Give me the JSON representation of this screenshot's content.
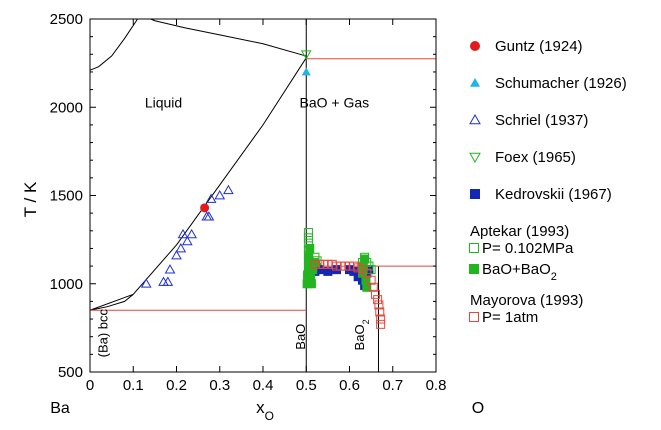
{
  "chart_data": {
    "type": "scatter",
    "xlabel": "x",
    "xlabel_sub": "O",
    "ylabel": "T / K",
    "xlim": [
      0,
      0.8
    ],
    "ylim": [
      500,
      2500
    ],
    "x_ticks": [
      "0",
      "0.1",
      "0.2",
      "0.3",
      "0.4",
      "0.5",
      "0.6",
      "0.7",
      "0.8"
    ],
    "y_ticks": [
      "500",
      "1000",
      "1500",
      "2000",
      "2500"
    ],
    "grid": false,
    "legend_position": "right",
    "corner_labels": {
      "left": "Ba",
      "right": "O"
    },
    "annotations": [
      {
        "text": "Liquid",
        "x": 0.17,
        "y": 2000,
        "rotate": false
      },
      {
        "text": "BaO + Gas",
        "x": 0.565,
        "y": 2000,
        "rotate": false
      },
      {
        "text": "(Ba) bcc",
        "x": 0.04,
        "y": 720,
        "rotate": true
      },
      {
        "text": "BaO",
        "x": 0.497,
        "y": 700,
        "rotate": true
      },
      {
        "text": "BaO",
        "sub": "2",
        "x": 0.634,
        "y": 710,
        "rotate": true
      }
    ],
    "phase_lines": [
      {
        "name": "liquidus-left",
        "color": "#000000",
        "points": [
          [
            0,
            850
          ],
          [
            0.1,
            940
          ],
          [
            0.2,
            1220
          ],
          [
            0.3,
            1560
          ],
          [
            0.4,
            1900
          ],
          [
            0.5,
            2280
          ]
        ]
      },
      {
        "name": "bcc-liquidus",
        "color": "#000000",
        "points": [
          [
            0,
            850
          ],
          [
            0.04,
            870
          ],
          [
            0.08,
            900
          ],
          [
            0.1,
            940
          ]
        ]
      },
      {
        "name": "gas-boundary-left",
        "color": "#000000",
        "points": [
          [
            0,
            2210
          ],
          [
            0.02,
            2230
          ],
          [
            0.05,
            2290
          ],
          [
            0.08,
            2390
          ],
          [
            0.11,
            2500
          ]
        ]
      },
      {
        "name": "gas-boundary-top",
        "color": "#000000",
        "points": [
          [
            0.5,
            2290
          ],
          [
            0.4,
            2360
          ],
          [
            0.3,
            2410
          ],
          [
            0.22,
            2450
          ],
          [
            0.15,
            2490
          ],
          [
            0.14,
            2500
          ]
        ]
      },
      {
        "name": "BaO-line",
        "color": "#000000",
        "points": [
          [
            0.5,
            500
          ],
          [
            0.5,
            2500
          ]
        ]
      },
      {
        "name": "BaO2-line",
        "color": "#000000",
        "points": [
          [
            0.667,
            500
          ],
          [
            0.667,
            1100
          ]
        ]
      },
      {
        "name": "eutectic-Ba-BaO",
        "color": "#e8463b",
        "points": [
          [
            0,
            850
          ],
          [
            0.5,
            850
          ]
        ]
      },
      {
        "name": "BaO-gas-isotherm",
        "color": "#e8463b",
        "points": [
          [
            0.5,
            2275
          ],
          [
            0.8,
            2275
          ]
        ]
      },
      {
        "name": "BaO2-decomposition",
        "color": "#e8463b",
        "points": [
          [
            0.5,
            1100
          ],
          [
            0.8,
            1100
          ]
        ]
      }
    ],
    "series": [
      {
        "name": "Guntz (1924)",
        "marker": "circle-filled",
        "color": "#e41a1c",
        "points": [
          [
            0.265,
            1430
          ]
        ]
      },
      {
        "name": "Schumacher (1926)",
        "marker": "triangle-up-filled",
        "color": "#1bb5e8",
        "points": [
          [
            0.5,
            2200
          ]
        ]
      },
      {
        "name": "Schriel (1937)",
        "marker": "triangle-up-open",
        "color": "#1f2fd6",
        "points": [
          [
            0.13,
            1000
          ],
          [
            0.17,
            1010
          ],
          [
            0.18,
            1010
          ],
          [
            0.185,
            1080
          ],
          [
            0.2,
            1160
          ],
          [
            0.21,
            1200
          ],
          [
            0.215,
            1280
          ],
          [
            0.225,
            1240
          ],
          [
            0.235,
            1280
          ],
          [
            0.27,
            1380
          ],
          [
            0.275,
            1380
          ],
          [
            0.28,
            1480
          ],
          [
            0.3,
            1500
          ],
          [
            0.32,
            1530
          ]
        ]
      },
      {
        "name": "Foex (1965)",
        "marker": "triangle-down-open",
        "color": "#22b520",
        "points": [
          [
            0.5,
            2300
          ]
        ]
      },
      {
        "name": "Kedrovskii (1967)",
        "marker": "square-filled",
        "color": "#1228b5",
        "points": [
          [
            0.51,
            1030
          ],
          [
            0.52,
            1070
          ],
          [
            0.525,
            1090
          ],
          [
            0.53,
            1080
          ],
          [
            0.55,
            1070
          ],
          [
            0.57,
            1080
          ],
          [
            0.6,
            1080
          ],
          [
            0.61,
            1070
          ],
          [
            0.62,
            1040
          ],
          [
            0.63,
            1020
          ],
          [
            0.635,
            990
          ],
          [
            0.64,
            1060
          ],
          [
            0.645,
            1080
          ]
        ]
      }
    ],
    "groups": [
      {
        "title": "Aptekar (1993)",
        "title_color": "#000000",
        "series": [
          {
            "name": "P= 0.102MPa",
            "marker": "square-open",
            "color": "#22b520",
            "points": [
              [
                0.505,
                1130
              ],
              [
                0.505,
                1160
              ],
              [
                0.505,
                1190
              ],
              [
                0.505,
                1230
              ],
              [
                0.505,
                1260
              ],
              [
                0.505,
                1290
              ],
              [
                0.51,
                1110
              ],
              [
                0.515,
                1100
              ],
              [
                0.52,
                1150
              ],
              [
                0.525,
                1130
              ],
              [
                0.63,
                1120
              ],
              [
                0.635,
                1150
              ],
              [
                0.64,
                1120
              ],
              [
                0.645,
                1100
              ],
              [
                0.65,
                1080
              ]
            ]
          },
          {
            "name": "BaO+BaO",
            "name_sub": "2",
            "marker": "square-filled",
            "color": "#22b520",
            "points": [
              [
                0.502,
                1000
              ],
              [
                0.503,
                1050
              ],
              [
                0.505,
                1100
              ],
              [
                0.506,
                1150
              ],
              [
                0.508,
                1200
              ],
              [
                0.51,
                1050
              ],
              [
                0.512,
                1000
              ],
              [
                0.515,
                1080
              ],
              [
                0.52,
                1120
              ],
              [
                0.63,
                1060
              ],
              [
                0.632,
                1100
              ],
              [
                0.635,
                1140
              ],
              [
                0.638,
                1020
              ],
              [
                0.64,
                980
              ]
            ]
          }
        ]
      },
      {
        "title": "Mayorova (1993)",
        "title_color": "#000000",
        "series": [
          {
            "name": "P= 1atm",
            "marker": "square-open",
            "color": "#e8463b",
            "points": [
              [
                0.52,
                1110
              ],
              [
                0.53,
                1110
              ],
              [
                0.54,
                1110
              ],
              [
                0.55,
                1110
              ],
              [
                0.56,
                1110
              ],
              [
                0.57,
                1100
              ],
              [
                0.58,
                1100
              ],
              [
                0.59,
                1100
              ],
              [
                0.6,
                1100
              ],
              [
                0.61,
                1100
              ],
              [
                0.62,
                1090
              ],
              [
                0.63,
                1080
              ],
              [
                0.64,
                1060
              ],
              [
                0.65,
                1020
              ],
              [
                0.655,
                980
              ],
              [
                0.66,
                940
              ],
              [
                0.665,
                910
              ],
              [
                0.668,
                880
              ],
              [
                0.67,
                840
              ],
              [
                0.672,
                800
              ],
              [
                0.672,
                770
              ]
            ]
          }
        ]
      }
    ]
  }
}
